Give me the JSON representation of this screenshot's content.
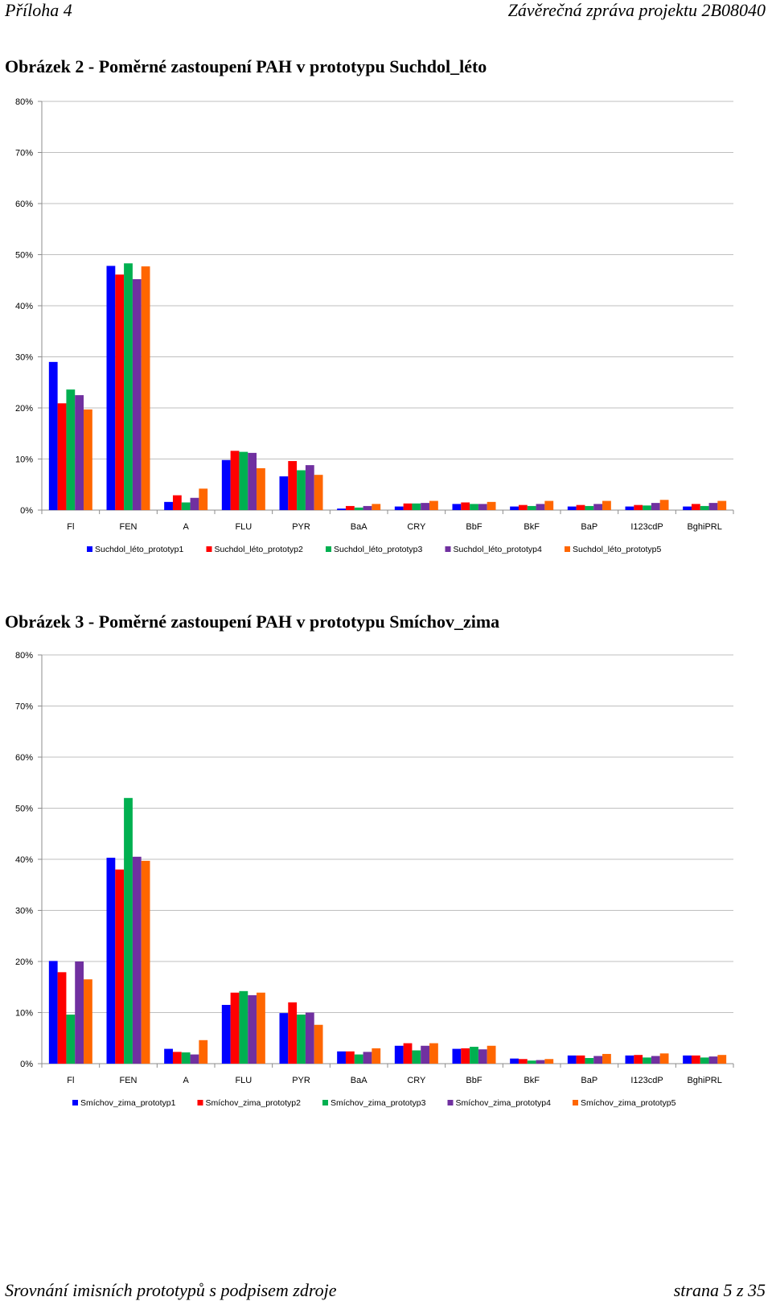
{
  "header": {
    "left": "Příloha 4",
    "right": "Závěrečná zpráva projektu 2B08040"
  },
  "figures": [
    {
      "title": "Obrázek 2 - Poměrné zastoupení PAH v prototypu Suchdol_léto"
    },
    {
      "title": "Obrázek 3 - Poměrné zastoupení PAH v prototypu Smíchov_zima"
    }
  ],
  "footer": {
    "left": "Srovnání imisních prototypů s podpisem zdroje",
    "right": "strana 5 z 35"
  },
  "chart_data": [
    {
      "type": "bar",
      "categories": [
        "Fl",
        "FEN",
        "A",
        "FLU",
        "PYR",
        "BaA",
        "CRY",
        "BbF",
        "BkF",
        "BaP",
        "I123cdP",
        "BghiPRL"
      ],
      "yticks": [
        "0%",
        "10%",
        "20%",
        "30%",
        "40%",
        "50%",
        "60%",
        "70%",
        "80%"
      ],
      "ylim": [
        0,
        80
      ],
      "grid": true,
      "legend_position": "bottom",
      "series": [
        {
          "name": "Suchdol_léto_prototyp1",
          "color": "#0000ff",
          "values": [
            29,
            47.8,
            1.6,
            9.8,
            6.6,
            0.3,
            0.7,
            1.2,
            0.7,
            0.7,
            0.7,
            0.7
          ]
        },
        {
          "name": "Suchdol_léto_prototyp2",
          "color": "#ff0000",
          "values": [
            20.9,
            46.1,
            2.9,
            11.6,
            9.6,
            0.8,
            1.3,
            1.5,
            1.0,
            1.0,
            1.0,
            1.2
          ]
        },
        {
          "name": "Suchdol_léto_prototyp3",
          "color": "#00b050",
          "values": [
            23.6,
            48.3,
            1.5,
            11.4,
            7.8,
            0.5,
            1.3,
            1.2,
            0.8,
            0.8,
            0.9,
            0.8
          ]
        },
        {
          "name": "Suchdol_léto_prototyp4",
          "color": "#7030a0",
          "values": [
            22.5,
            45.2,
            2.4,
            11.2,
            8.8,
            0.8,
            1.4,
            1.2,
            1.2,
            1.2,
            1.4,
            1.4
          ]
        },
        {
          "name": "Suchdol_léto_prototyp5",
          "color": "#ff6600",
          "values": [
            19.7,
            47.7,
            4.2,
            8.2,
            6.9,
            1.2,
            1.8,
            1.6,
            1.8,
            1.8,
            2.0,
            1.8
          ]
        }
      ]
    },
    {
      "type": "bar",
      "categories": [
        "Fl",
        "FEN",
        "A",
        "FLU",
        "PYR",
        "BaA",
        "CRY",
        "BbF",
        "BkF",
        "BaP",
        "I123cdP",
        "BghiPRL"
      ],
      "yticks": [
        "0%",
        "10%",
        "20%",
        "30%",
        "40%",
        "50%",
        "60%",
        "70%",
        "80%"
      ],
      "ylim": [
        0,
        80
      ],
      "grid": true,
      "legend_position": "bottom",
      "series": [
        {
          "name": "Smíchov_zima_prototyp1",
          "color": "#0000ff",
          "values": [
            20.1,
            40.3,
            2.9,
            11.5,
            9.9,
            2.4,
            3.5,
            2.9,
            1.0,
            1.6,
            1.6,
            1.6
          ]
        },
        {
          "name": "Smíchov_zima_prototyp2",
          "color": "#ff0000",
          "values": [
            17.9,
            38.0,
            2.3,
            13.9,
            12.0,
            2.4,
            4.0,
            3.0,
            0.9,
            1.6,
            1.7,
            1.6
          ]
        },
        {
          "name": "Smíchov_zima_prototyp3",
          "color": "#00b050",
          "values": [
            9.6,
            52.0,
            2.2,
            14.2,
            9.6,
            1.8,
            2.6,
            3.3,
            0.6,
            1.1,
            1.2,
            1.2
          ]
        },
        {
          "name": "Smíchov_zima_prototyp4",
          "color": "#7030a0",
          "values": [
            20.0,
            40.5,
            1.8,
            13.4,
            10.0,
            2.3,
            3.5,
            2.8,
            0.7,
            1.5,
            1.5,
            1.4
          ]
        },
        {
          "name": "Smíchov_zima_prototyp5",
          "color": "#ff6600",
          "values": [
            16.5,
            39.7,
            4.6,
            13.9,
            7.6,
            3.0,
            4.0,
            3.5,
            0.9,
            1.9,
            2.0,
            1.7
          ]
        }
      ]
    }
  ]
}
